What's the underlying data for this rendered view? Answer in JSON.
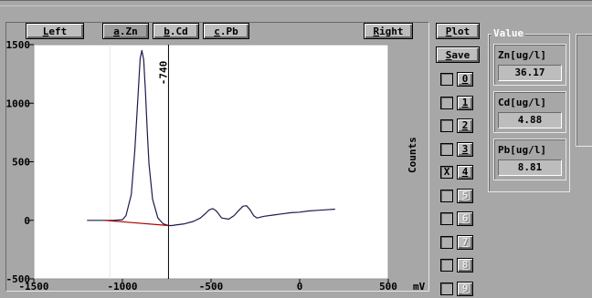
{
  "toolbar": {
    "left": "Left",
    "left_key": "L",
    "zn": "a.Zn",
    "zn_key": "a",
    "cd": "b.Cd",
    "cd_key": "b",
    "pb": "c.Pb",
    "pb_key": "c",
    "right": "Right",
    "right_key": "R",
    "plot": "Plot",
    "plot_key": "P",
    "save": "Save",
    "save_key": "S"
  },
  "value_group": {
    "title": "Value",
    "items": [
      {
        "label": "Zn[ug/l]",
        "value": "36.17"
      },
      {
        "label": "Cd[ug/l]",
        "value": "4.88"
      },
      {
        "label": "Pb[ug/l]",
        "value": "8.81"
      }
    ]
  },
  "channels": [
    {
      "label": "0",
      "checked": false,
      "enabled": true
    },
    {
      "label": "1",
      "checked": false,
      "enabled": true
    },
    {
      "label": "2",
      "checked": false,
      "enabled": true
    },
    {
      "label": "3",
      "checked": false,
      "enabled": true
    },
    {
      "label": "4",
      "checked": true,
      "enabled": true
    },
    {
      "label": "5",
      "checked": false,
      "enabled": false
    },
    {
      "label": "6",
      "checked": false,
      "enabled": false
    },
    {
      "label": "7",
      "checked": false,
      "enabled": false
    },
    {
      "label": "8",
      "checked": false,
      "enabled": false
    },
    {
      "label": "9",
      "checked": false,
      "enabled": false
    }
  ],
  "chart_data": {
    "type": "line",
    "xlabel": "mV",
    "ylabel": "Counts",
    "xlim": [
      -1500,
      500
    ],
    "ylim": [
      -500,
      1500
    ],
    "x_ticks": [
      "-1500",
      "-1000",
      "-500",
      "0",
      "500"
    ],
    "x_tick_values": [
      -1500,
      -1000,
      -500,
      0,
      500
    ],
    "y_ticks": [
      "1500",
      "1000",
      "500",
      "0",
      "-500"
    ],
    "y_tick_values": [
      1500,
      1000,
      500,
      0,
      -500
    ],
    "markers": [
      {
        "label": "-1071",
        "x": -1071,
        "color": "#ffffff"
      },
      {
        "label": "-740",
        "x": -740,
        "color": "#000000"
      }
    ],
    "series": [
      {
        "color": "#1e1a4a",
        "x": [
          -1200,
          -1100,
          -1050,
          -1000,
          -980,
          -950,
          -930,
          -910,
          -900,
          -890,
          -880,
          -870,
          -860,
          -850,
          -830,
          -800,
          -770,
          -740,
          -720,
          -700,
          -650,
          -600,
          -560,
          -530,
          -510,
          -490,
          -470,
          -440,
          -400,
          -370,
          -340,
          -320,
          -300,
          -280,
          -260,
          -240,
          -200,
          -150,
          -100,
          -50,
          0,
          50,
          100,
          150,
          200
        ],
        "y": [
          0,
          0,
          0,
          5,
          40,
          220,
          600,
          1120,
          1380,
          1450,
          1370,
          1100,
          760,
          480,
          180,
          20,
          -30,
          -45,
          -45,
          -40,
          -30,
          -10,
          20,
          60,
          90,
          100,
          80,
          20,
          10,
          40,
          90,
          120,
          125,
          90,
          40,
          20,
          35,
          45,
          55,
          65,
          70,
          80,
          85,
          90,
          95
        ]
      },
      {
        "color": "#b00000",
        "x": [
          -1100,
          -740
        ],
        "y": [
          0,
          -45
        ]
      }
    ]
  }
}
